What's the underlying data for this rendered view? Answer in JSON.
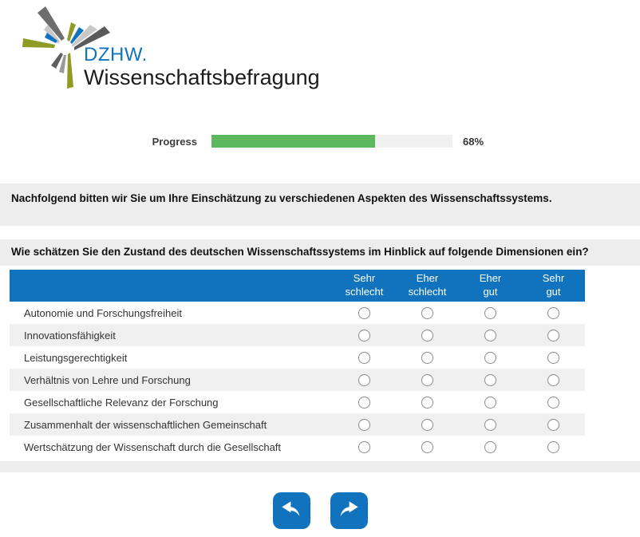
{
  "logo": {
    "brand": "DZHW.",
    "subtitle": "Wissenschaftsbefragung",
    "brand_color": "#1173be",
    "ray_colors": {
      "olive": "#8e9c25",
      "dark_gray": "#636363",
      "light_gray": "#c8c8c8",
      "mid_gray": "#9b9b9b",
      "blue": "#1173be"
    }
  },
  "progress": {
    "label": "Progress",
    "percent": 68,
    "percent_label": "68%",
    "fill_color": "#5cb85c",
    "track_color": "#f0f0f0"
  },
  "intro_banner": {
    "text": "Nachfolgend bitten wir Sie um Ihre Einschätzung zu verschiedenen Aspekten des Wissenschaftssystems."
  },
  "question_banner": {
    "text": "Wie schätzen Sie den Zustand des deutschen Wissenschaftssystems im Hinblick auf folgende Dimensionen ein?"
  },
  "matrix": {
    "header_color": "#1173be",
    "columns": [
      "Sehr\nschlecht",
      "Eher\nschlecht",
      "Eher\ngut",
      "Sehr\ngut"
    ],
    "rows": [
      "Autonomie und Forschungsfreiheit",
      "Innovationsfähigkeit",
      "Leistungsgerechtigkeit",
      "Verhältnis von Lehre und Forschung",
      "Gesellschaftliche Relevanz der Forschung",
      "Zusammenhalt der wissenschaftlichen Gemeinschaft",
      "Wertschätzung der Wissenschaft durch die Gesellschaft"
    ],
    "radio_state": "all-unselected"
  },
  "navigation": {
    "back_label": "previous",
    "forward_label": "next",
    "button_color": "#1173be"
  }
}
